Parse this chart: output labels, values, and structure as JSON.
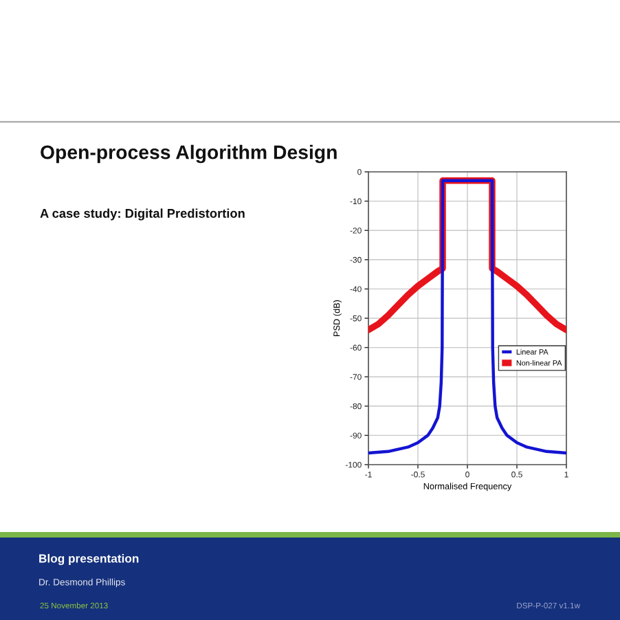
{
  "chart_data": {
    "type": "line",
    "title": "Open-process Algorithm Design",
    "subtitle": "A case study: Digital Predistortion",
    "xlabel": "Normalised Frequency",
    "ylabel": "PSD (dB)",
    "annotations": [
      "Blog presentation",
      "Dr. Desmond Phillips",
      "25 November 2013",
      "DSP-P-027 v1.1w"
    ],
    "xlim": [
      -1,
      1
    ],
    "xticks": [
      -1,
      -0.5,
      0,
      0.5,
      1
    ],
    "ylim": [
      -100,
      0
    ],
    "yticks": [
      0,
      -10,
      -20,
      -30,
      -40,
      -50,
      -60,
      -70,
      -80,
      -90,
      -100
    ],
    "grid": true,
    "legend": "bottom right",
    "line_style": "solid",
    "marker": "none",
    "series": [
      {
        "name": "Linear PA",
        "color": "#1414d2",
        "x": [
          -1,
          -0.8,
          -0.6,
          -0.5,
          -0.4,
          -0.35,
          -0.3,
          -0.28,
          -0.265,
          -0.255,
          -0.25,
          0.25,
          0.255,
          0.265,
          0.28,
          0.3,
          0.35,
          0.4,
          0.5,
          0.6,
          0.8,
          1
        ],
        "values": [
          -96,
          -95.5,
          -94,
          -92.5,
          -90,
          -87.5,
          -84,
          -80,
          -72,
          -60,
          -3,
          -3,
          -60,
          -72,
          -80,
          -84,
          -87.5,
          -90,
          -92.5,
          -94,
          -95.5,
          -96
        ]
      },
      {
        "name": "Non-linear PA",
        "color": "#e8141c",
        "x": [
          -1,
          -0.9,
          -0.8,
          -0.7,
          -0.6,
          -0.5,
          -0.4,
          -0.3,
          -0.25,
          -0.25,
          0.25,
          0.25,
          0.3,
          0.4,
          0.5,
          0.6,
          0.7,
          0.8,
          0.9,
          1
        ],
        "values": [
          -54,
          -52,
          -49,
          -45.5,
          -42,
          -39,
          -36.5,
          -34,
          -33,
          -3,
          -3,
          -33,
          -34,
          -36.5,
          -39,
          -42,
          -45.5,
          -49,
          -52,
          -54
        ]
      }
    ]
  }
}
